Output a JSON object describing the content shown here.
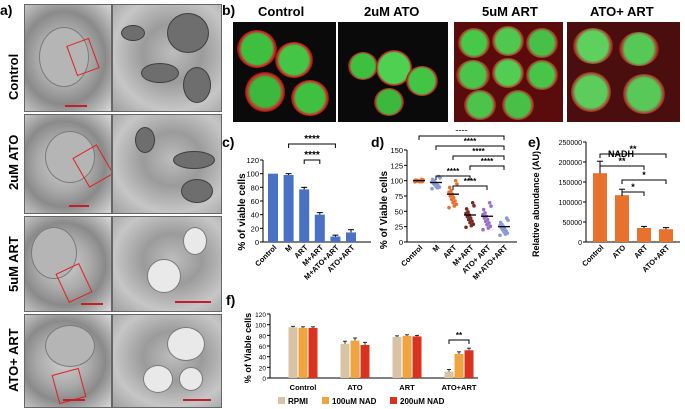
{
  "panel_labels": {
    "a": "a)",
    "b": "b)",
    "c": "c)",
    "d": "d)",
    "e": "e)",
    "f": "f)"
  },
  "panel_a": {
    "rows": [
      "Control",
      "2uM ATO",
      "5uM ART",
      "ATO+ ART"
    ]
  },
  "panel_b": {
    "columns": [
      "Control",
      "2uM ATO",
      "5uM ART",
      "ATO+ ART"
    ]
  },
  "colors": {
    "blue": "#4a72c4",
    "orange": "#e8712e",
    "violet": "#9a70c8",
    "brown": "#7a2a24",
    "periwinkle": "#8a9ad8",
    "tan": "#d9c3a5",
    "red": "#d9331f",
    "light_orange": "#f0a440"
  },
  "chart_data": [
    {
      "panel": "c",
      "type": "bar",
      "ylabel": "% of viable cells",
      "ylim": [
        0,
        120
      ],
      "yticks": [
        0,
        20,
        40,
        60,
        80,
        100,
        120
      ],
      "categories": [
        "Control",
        "M",
        "ART",
        "M+ART",
        "M+ATO+ART",
        "ATO+ART"
      ],
      "values": [
        100,
        98,
        77,
        40,
        8,
        14
      ],
      "errors": [
        0,
        2,
        3,
        3,
        2,
        4
      ],
      "significance": [
        "****",
        "****"
      ]
    },
    {
      "panel": "d",
      "type": "scatter",
      "ylabel": "% of Viable cells",
      "ylim": [
        0,
        150
      ],
      "yticks": [
        0,
        25,
        50,
        75,
        100,
        125,
        150
      ],
      "categories": [
        "Control",
        "M",
        "ART",
        "M+ART",
        "ATO+ ART",
        "M+ATO+ART"
      ],
      "means": [
        100,
        97,
        78,
        44,
        42,
        25
      ],
      "significance": [
        "****",
        "****",
        "****",
        "****",
        "****",
        "****"
      ]
    },
    {
      "panel": "e",
      "type": "bar",
      "title": "NADH",
      "ylabel": "Relative abundance (AU)",
      "ylim": [
        0,
        250000
      ],
      "yticks": [
        "0",
        "50000",
        "100000",
        "150000",
        "200000",
        "250000"
      ],
      "categories": [
        "Control",
        "ATO",
        "ART",
        "ATO+ART"
      ],
      "values": [
        172000,
        117000,
        35000,
        32000
      ],
      "errors": [
        30000,
        15000,
        4000,
        4000
      ],
      "significance": [
        "**",
        "**",
        "*",
        "*"
      ]
    },
    {
      "panel": "f",
      "type": "bar",
      "ylabel": "% of Viable cells",
      "ylim": [
        0,
        120
      ],
      "yticks": [
        0,
        20,
        40,
        60,
        80,
        100,
        120
      ],
      "categories": [
        "Control",
        "ATO",
        "ART",
        "ATO+ART"
      ],
      "series": [
        {
          "name": "RPMI",
          "values": [
            95,
            64,
            77,
            12
          ]
        },
        {
          "name": "100uM NAD",
          "values": [
            94,
            70,
            79,
            45
          ]
        },
        {
          "name": "200uM NAD",
          "values": [
            94,
            62,
            78,
            52
          ]
        }
      ],
      "errors": [
        2,
        5,
        2,
        4
      ],
      "significance": [
        "**"
      ]
    }
  ]
}
